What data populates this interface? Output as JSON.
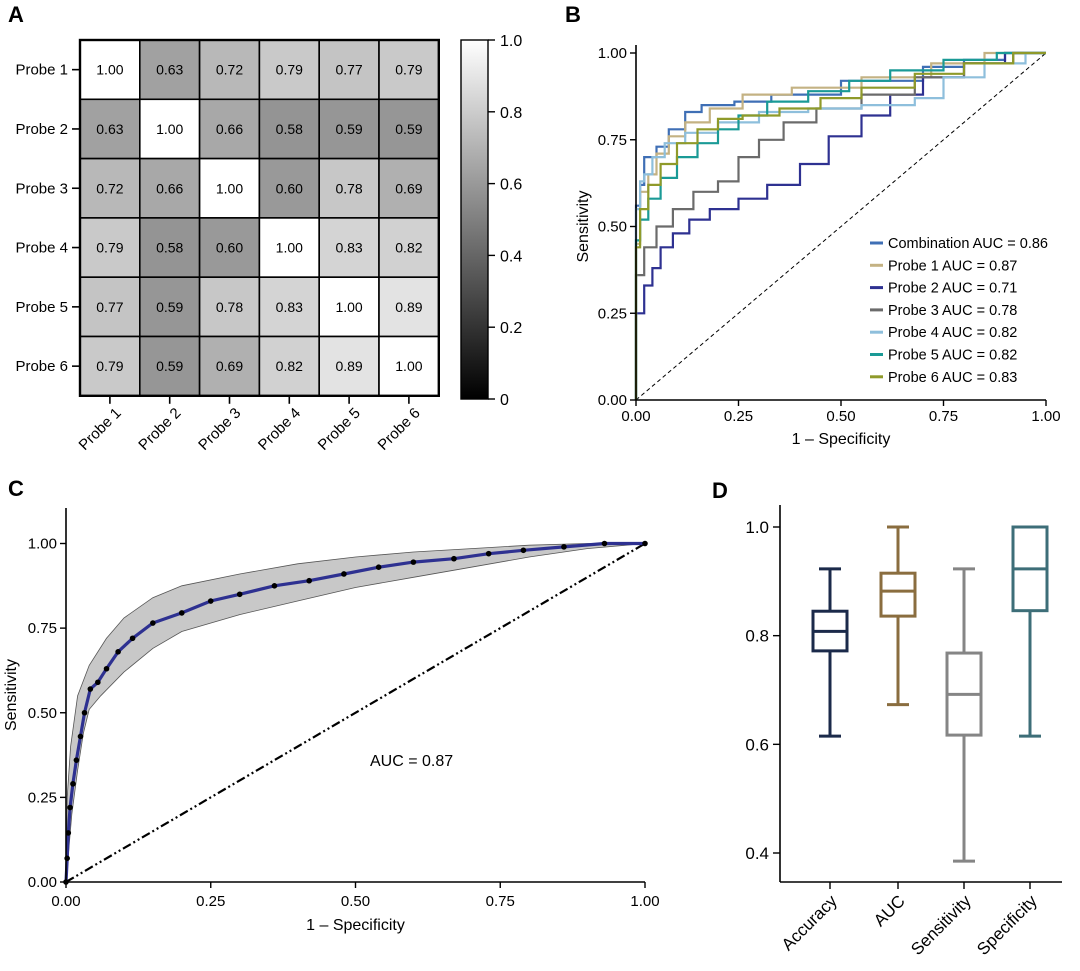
{
  "chart_data": [
    {
      "panel": "A",
      "type": "heatmap",
      "row_labels": [
        "Probe 1",
        "Probe 2",
        "Probe 3",
        "Probe 4",
        "Probe 5",
        "Probe 6"
      ],
      "col_labels": [
        "Probe 1",
        "Probe 2",
        "Probe 3",
        "Probe 4",
        "Probe 5",
        "Probe 6"
      ],
      "values": [
        [
          1.0,
          0.63,
          0.72,
          0.79,
          0.77,
          0.79
        ],
        [
          0.63,
          1.0,
          0.66,
          0.58,
          0.59,
          0.59
        ],
        [
          0.72,
          0.66,
          1.0,
          0.6,
          0.78,
          0.69
        ],
        [
          0.79,
          0.58,
          0.6,
          1.0,
          0.83,
          0.82
        ],
        [
          0.77,
          0.59,
          0.78,
          0.83,
          1.0,
          0.89
        ],
        [
          0.79,
          0.59,
          0.69,
          0.82,
          0.89,
          1.0
        ]
      ],
      "colorbar": {
        "range": [
          0,
          1
        ],
        "ticks": [
          0,
          0.2,
          0.4,
          0.6,
          0.8,
          1.0
        ],
        "tick_labels": [
          "0",
          "0.2",
          "0.4",
          "0.6",
          "0.8",
          "1.0"
        ],
        "colors": [
          "#000000",
          "#ffffff"
        ]
      }
    },
    {
      "panel": "B",
      "type": "line",
      "xlabel": "1 – Specificity",
      "ylabel": "Sensitivity",
      "xlim": [
        0,
        1
      ],
      "ylim": [
        0,
        1
      ],
      "xticks": [
        "0.00",
        "0.25",
        "0.50",
        "0.75",
        "1.00"
      ],
      "yticks": [
        "0.00",
        "0.25",
        "0.50",
        "0.75",
        "1.00"
      ],
      "legend_position": "bottom-right",
      "reference_line": "diagonal-dashed",
      "series": [
        {
          "name": "Combination AUC = 0.86",
          "color": "#3f6fb5",
          "points": [
            [
              0,
              0
            ],
            [
              0,
              0.45
            ],
            [
              0.01,
              0.56
            ],
            [
              0.02,
              0.62
            ],
            [
              0.05,
              0.7
            ],
            [
              0.08,
              0.73
            ],
            [
              0.12,
              0.78
            ],
            [
              0.16,
              0.83
            ],
            [
              0.24,
              0.85
            ],
            [
              0.33,
              0.86
            ],
            [
              0.5,
              0.88
            ],
            [
              0.7,
              0.92
            ],
            [
              0.8,
              0.96
            ],
            [
              0.9,
              0.98
            ],
            [
              1,
              1
            ]
          ]
        },
        {
          "name": "Probe 1 AUC = 0.87",
          "color": "#c4b283",
          "points": [
            [
              0,
              0
            ],
            [
              0,
              0.28
            ],
            [
              0.01,
              0.45
            ],
            [
              0.03,
              0.6
            ],
            [
              0.05,
              0.65
            ],
            [
              0.08,
              0.71
            ],
            [
              0.12,
              0.76
            ],
            [
              0.18,
              0.8
            ],
            [
              0.26,
              0.84
            ],
            [
              0.38,
              0.88
            ],
            [
              0.55,
              0.9
            ],
            [
              0.72,
              0.93
            ],
            [
              0.85,
              0.97
            ],
            [
              1,
              1
            ]
          ]
        },
        {
          "name": "Probe 2 AUC = 0.71",
          "color": "#2e3191",
          "points": [
            [
              0,
              0
            ],
            [
              0,
              0.18
            ],
            [
              0.02,
              0.25
            ],
            [
              0.04,
              0.33
            ],
            [
              0.06,
              0.38
            ],
            [
              0.09,
              0.44
            ],
            [
              0.13,
              0.48
            ],
            [
              0.18,
              0.52
            ],
            [
              0.25,
              0.55
            ],
            [
              0.32,
              0.58
            ],
            [
              0.4,
              0.62
            ],
            [
              0.47,
              0.68
            ],
            [
              0.55,
              0.76
            ],
            [
              0.62,
              0.82
            ],
            [
              0.7,
              0.88
            ],
            [
              0.8,
              0.93
            ],
            [
              0.9,
              0.97
            ],
            [
              1,
              1
            ]
          ]
        },
        {
          "name": "Probe 3 AUC = 0.78",
          "color": "#6b6b6b",
          "points": [
            [
              0,
              0
            ],
            [
              0,
              0.3
            ],
            [
              0.02,
              0.36
            ],
            [
              0.05,
              0.44
            ],
            [
              0.09,
              0.5
            ],
            [
              0.14,
              0.55
            ],
            [
              0.2,
              0.6
            ],
            [
              0.25,
              0.63
            ],
            [
              0.3,
              0.7
            ],
            [
              0.36,
              0.75
            ],
            [
              0.44,
              0.8
            ],
            [
              0.55,
              0.84
            ],
            [
              0.68,
              0.88
            ],
            [
              0.8,
              0.93
            ],
            [
              0.92,
              0.97
            ],
            [
              1,
              1
            ]
          ]
        },
        {
          "name": "Probe 4 AUC = 0.82",
          "color": "#8ebfdc",
          "points": [
            [
              0,
              0
            ],
            [
              0,
              0.44
            ],
            [
              0.01,
              0.55
            ],
            [
              0.02,
              0.63
            ],
            [
              0.04,
              0.65
            ],
            [
              0.07,
              0.7
            ],
            [
              0.12,
              0.74
            ],
            [
              0.2,
              0.77
            ],
            [
              0.3,
              0.8
            ],
            [
              0.42,
              0.83
            ],
            [
              0.55,
              0.84
            ],
            [
              0.68,
              0.85
            ],
            [
              0.75,
              0.87
            ],
            [
              0.85,
              0.93
            ],
            [
              0.95,
              0.97
            ],
            [
              1,
              1
            ]
          ]
        },
        {
          "name": "Probe 5 AUC = 0.82",
          "color": "#1a9a96",
          "points": [
            [
              0,
              0
            ],
            [
              0,
              0.4
            ],
            [
              0.01,
              0.46
            ],
            [
              0.03,
              0.52
            ],
            [
              0.06,
              0.58
            ],
            [
              0.1,
              0.64
            ],
            [
              0.15,
              0.7
            ],
            [
              0.2,
              0.74
            ],
            [
              0.25,
              0.78
            ],
            [
              0.32,
              0.82
            ],
            [
              0.42,
              0.86
            ],
            [
              0.52,
              0.89
            ],
            [
              0.62,
              0.92
            ],
            [
              0.75,
              0.95
            ],
            [
              0.88,
              0.98
            ],
            [
              1,
              1
            ]
          ]
        },
        {
          "name": "Probe 6 AUC = 0.83",
          "color": "#8f9a2a",
          "points": [
            [
              0,
              0
            ],
            [
              0,
              0.33
            ],
            [
              0.01,
              0.44
            ],
            [
              0.03,
              0.55
            ],
            [
              0.06,
              0.62
            ],
            [
              0.1,
              0.68
            ],
            [
              0.15,
              0.74
            ],
            [
              0.2,
              0.78
            ],
            [
              0.26,
              0.81
            ],
            [
              0.35,
              0.82
            ],
            [
              0.45,
              0.84
            ],
            [
              0.55,
              0.87
            ],
            [
              0.68,
              0.9
            ],
            [
              0.8,
              0.94
            ],
            [
              0.92,
              0.97
            ],
            [
              1,
              1
            ]
          ]
        }
      ]
    },
    {
      "panel": "C",
      "type": "line",
      "xlabel": "1 – Specificity",
      "ylabel": "Sensitivity",
      "xlim": [
        0,
        1
      ],
      "ylim": [
        0,
        1.1
      ],
      "xticks": [
        "0.00",
        "0.25",
        "0.50",
        "0.75",
        "1.00"
      ],
      "yticks": [
        "0.00",
        "0.25",
        "0.50",
        "0.75",
        "1.00"
      ],
      "annotation": "AUC = 0.87",
      "reference_line": "diagonal-dash-dot",
      "line_color": "#2e3191",
      "band_color": "#c8c8c8",
      "points": [
        [
          0,
          0
        ],
        [
          0.002,
          0.07
        ],
        [
          0.004,
          0.145
        ],
        [
          0.007,
          0.22
        ],
        [
          0.012,
          0.29
        ],
        [
          0.018,
          0.36
        ],
        [
          0.025,
          0.43
        ],
        [
          0.032,
          0.5
        ],
        [
          0.042,
          0.57
        ],
        [
          0.055,
          0.59
        ],
        [
          0.07,
          0.63
        ],
        [
          0.09,
          0.68
        ],
        [
          0.115,
          0.72
        ],
        [
          0.15,
          0.765
        ],
        [
          0.2,
          0.795
        ],
        [
          0.25,
          0.83
        ],
        [
          0.3,
          0.85
        ],
        [
          0.36,
          0.875
        ],
        [
          0.42,
          0.89
        ],
        [
          0.48,
          0.91
        ],
        [
          0.54,
          0.93
        ],
        [
          0.6,
          0.945
        ],
        [
          0.67,
          0.955
        ],
        [
          0.73,
          0.97
        ],
        [
          0.79,
          0.98
        ],
        [
          0.86,
          0.99
        ],
        [
          0.93,
          1.0
        ],
        [
          1,
          1
        ]
      ],
      "band_lower": [
        [
          0,
          0
        ],
        [
          0.005,
          0.1
        ],
        [
          0.01,
          0.2
        ],
        [
          0.02,
          0.33
        ],
        [
          0.03,
          0.44
        ],
        [
          0.04,
          0.51
        ],
        [
          0.06,
          0.55
        ],
        [
          0.1,
          0.62
        ],
        [
          0.15,
          0.69
        ],
        [
          0.2,
          0.74
        ],
        [
          0.3,
          0.79
        ],
        [
          0.4,
          0.83
        ],
        [
          0.5,
          0.87
        ],
        [
          0.6,
          0.9
        ],
        [
          0.7,
          0.93
        ],
        [
          0.8,
          0.96
        ],
        [
          0.9,
          0.985
        ],
        [
          1,
          1
        ]
      ],
      "band_upper": [
        [
          0,
          0
        ],
        [
          0.002,
          0.25
        ],
        [
          0.008,
          0.4
        ],
        [
          0.02,
          0.55
        ],
        [
          0.04,
          0.64
        ],
        [
          0.07,
          0.72
        ],
        [
          0.1,
          0.78
        ],
        [
          0.15,
          0.84
        ],
        [
          0.2,
          0.875
        ],
        [
          0.3,
          0.91
        ],
        [
          0.4,
          0.94
        ],
        [
          0.5,
          0.96
        ],
        [
          0.6,
          0.975
        ],
        [
          0.7,
          0.985
        ],
        [
          0.8,
          0.995
        ],
        [
          0.9,
          1.0
        ],
        [
          1,
          1
        ]
      ]
    },
    {
      "panel": "D",
      "type": "box",
      "categories": [
        "Accuracy",
        "AUC",
        "Sensitivity",
        "Specificity"
      ],
      "ylim": [
        0.37,
        1.05
      ],
      "yticks": [
        "0.4",
        "0.6",
        "0.8",
        "1.0"
      ],
      "colors": [
        "#1b2a4a",
        "#8a6d3f",
        "#858585",
        "#3d6e78"
      ],
      "boxes": [
        {
          "min": 0.615,
          "q1": 0.772,
          "median": 0.808,
          "q3": 0.845,
          "max": 0.923
        },
        {
          "min": 0.673,
          "q1": 0.836,
          "median": 0.882,
          "q3": 0.915,
          "max": 1.0
        },
        {
          "min": 0.385,
          "q1": 0.617,
          "median": 0.692,
          "q3": 0.768,
          "max": 0.923
        },
        {
          "min": 0.615,
          "q1": 0.846,
          "median": 0.923,
          "q3": 1.0,
          "max": 1.0
        }
      ]
    }
  ],
  "panel_labels": [
    "A",
    "B",
    "C",
    "D"
  ]
}
